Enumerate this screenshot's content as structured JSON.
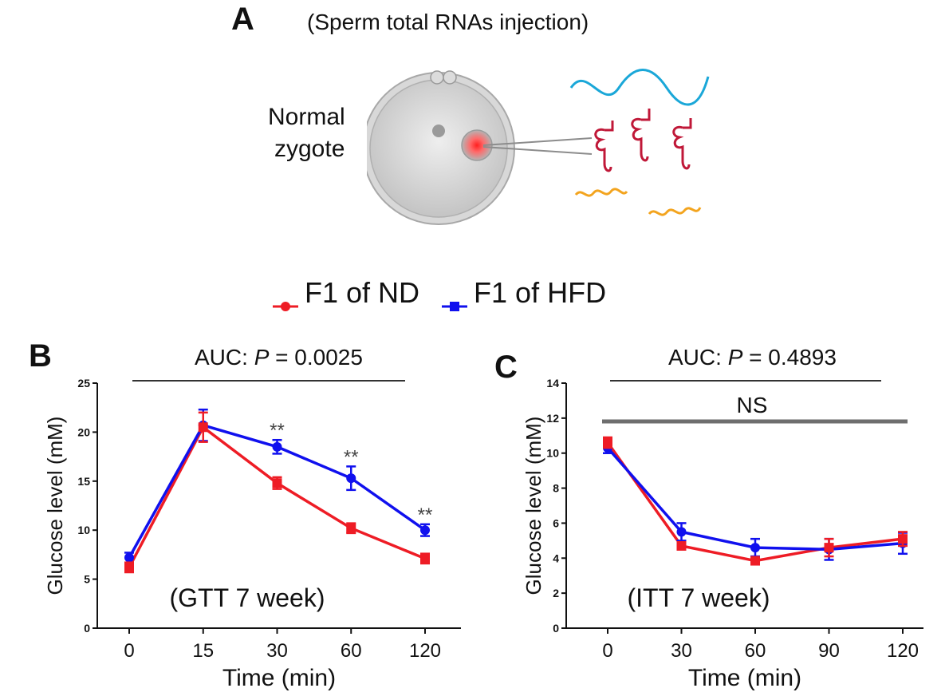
{
  "panelA": {
    "letter": "A",
    "title": "(Sperm total RNAs injection)",
    "zygote_label_line1": "Normal",
    "zygote_label_line2": "zygote"
  },
  "legend": {
    "nd_label": "F1 of ND",
    "hfd_label": "F1 of HFD"
  },
  "colors": {
    "nd": "#ee1c25",
    "hfd": "#1010ee",
    "sig_bar": "#333333",
    "ns_bar": "#6e6e6e"
  },
  "chart_data": [
    {
      "type": "line",
      "panel": "B",
      "letter": "B",
      "annotation": "AUC: ",
      "annotation_p": "P",
      "annotation_rest": " = 0.0025",
      "inner_label": "(GTT 7 week)",
      "xlabel": "Time (min)",
      "ylabel": "Glucose level (mM)",
      "categories": [
        "0",
        "15",
        "30",
        "60",
        "120"
      ],
      "ylim": [
        0,
        25
      ],
      "yticks": [
        "0",
        "5",
        "10",
        "15",
        "20",
        "25"
      ],
      "series": [
        {
          "name": "F1 of ND",
          "values": [
            6.2,
            20.5,
            14.8,
            10.2,
            7.1
          ],
          "errors": [
            0.5,
            1.5,
            0.6,
            0.5,
            0.5
          ]
        },
        {
          "name": "F1 of HFD",
          "values": [
            7.2,
            20.7,
            18.5,
            15.3,
            10.0
          ],
          "errors": [
            0.5,
            1.6,
            0.7,
            1.2,
            0.6
          ]
        }
      ],
      "significance": [
        "",
        "",
        "**",
        "**",
        "**"
      ]
    },
    {
      "type": "line",
      "panel": "C",
      "letter": "C",
      "annotation": "AUC: ",
      "annotation_p": "P",
      "annotation_rest": " = 0.4893",
      "ns_label": "NS",
      "inner_label": "(ITT 7 week)",
      "xlabel": "Time (min)",
      "ylabel": "Glucose level (mM)",
      "categories": [
        "0",
        "30",
        "60",
        "90",
        "120"
      ],
      "ylim": [
        0,
        14
      ],
      "yticks": [
        "0",
        "2",
        "4",
        "6",
        "8",
        "10",
        "12",
        "14"
      ],
      "series": [
        {
          "name": "F1 of ND",
          "values": [
            10.6,
            4.7,
            3.85,
            4.6,
            5.1
          ],
          "errors": [
            0.3,
            0.2,
            0.2,
            0.5,
            0.4
          ]
        },
        {
          "name": "F1 of HFD",
          "values": [
            10.3,
            5.5,
            4.6,
            4.5,
            4.85
          ],
          "errors": [
            0.3,
            0.5,
            0.5,
            0.6,
            0.6
          ]
        }
      ]
    }
  ]
}
